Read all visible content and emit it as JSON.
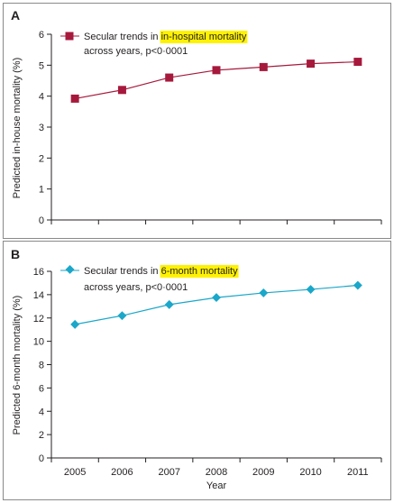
{
  "chart_data": [
    {
      "type": "line",
      "panel_label": "A",
      "ylabel": "Predicted in-house mortality (%)",
      "xlabel": "",
      "ylim": [
        0,
        6
      ],
      "yticks": [
        "0",
        "1",
        "2",
        "3",
        "4",
        "5",
        "6"
      ],
      "categories": [
        "2005",
        "2006",
        "2007",
        "2008",
        "2009",
        "2010",
        "2011"
      ],
      "series": [
        {
          "name": "Secular trends in in-hospital mortality across years, p<0·0001",
          "legend_prefix": "Secular trends in ",
          "legend_highlight": "in-hospital mortality",
          "legend_line2": "across years, p<0·0001",
          "values": [
            3.92,
            4.2,
            4.6,
            4.84,
            4.94,
            5.05,
            5.11
          ]
        }
      ],
      "series_color": "#a6193c",
      "marker": "square",
      "grid": false,
      "legend_position": "top-left"
    },
    {
      "type": "line",
      "panel_label": "B",
      "ylabel": "Predicted 6-month mortality (%)",
      "xlabel": "Year",
      "ylim": [
        0,
        16
      ],
      "yticks": [
        "0",
        "2",
        "4",
        "6",
        "8",
        "10",
        "12",
        "14",
        "16"
      ],
      "xticks": [
        "2005",
        "2006",
        "2007",
        "2008",
        "2009",
        "2010",
        "2011"
      ],
      "categories": [
        "2005",
        "2006",
        "2007",
        "2008",
        "2009",
        "2010",
        "2011"
      ],
      "series": [
        {
          "name": "Secular trends in 6-month mortality across years, p<0·0001",
          "legend_prefix": "Secular trends in ",
          "legend_highlight": "6-month mortality",
          "legend_line2": "across years, p<0·0001",
          "values": [
            11.45,
            12.2,
            13.15,
            13.75,
            14.15,
            14.45,
            14.8
          ]
        }
      ],
      "series_color": "#1aa7c9",
      "marker": "diamond",
      "grid": false,
      "legend_position": "top-left"
    }
  ],
  "colors": {
    "panel_border": "#8a8a8a",
    "highlight": "#fff200",
    "axis": "#231f20"
  }
}
